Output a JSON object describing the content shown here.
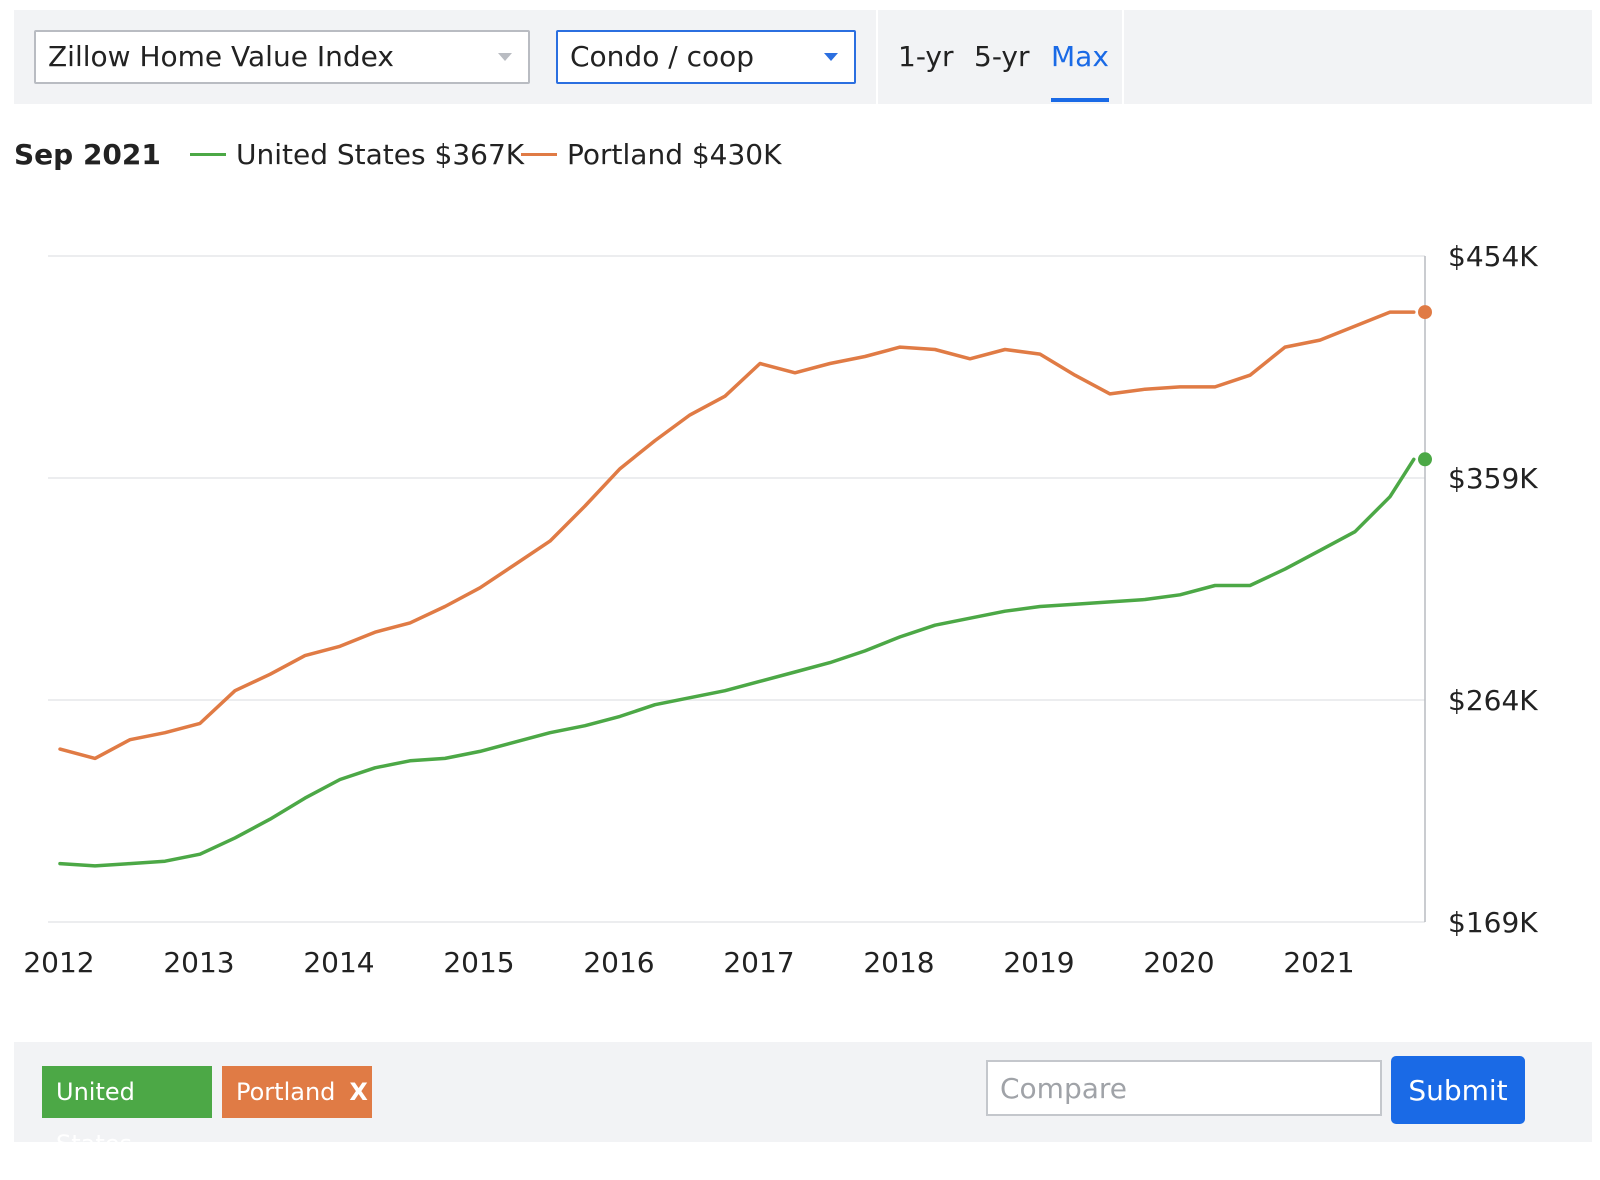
{
  "toolbar": {
    "metric_select": "Zillow Home Value Index",
    "type_select": "Condo / coop",
    "ranges": [
      "1-yr",
      "5-yr",
      "Max"
    ],
    "active_range": "Max"
  },
  "legend": {
    "date": "Sep 2021",
    "items": [
      {
        "label": "United States $367K",
        "color": "#4ca846"
      },
      {
        "label": "Portland $430K",
        "color": "#e07b45"
      }
    ]
  },
  "chips": {
    "us_label": "United States",
    "portland_label": "Portland",
    "remove_label": "X"
  },
  "compare": {
    "placeholder": "Compare",
    "submit_label": "Submit"
  },
  "chart_data": {
    "type": "line",
    "title": "",
    "xlabel": "",
    "ylabel": "",
    "x_ticks": [
      "2012",
      "2013",
      "2014",
      "2015",
      "2016",
      "2017",
      "2018",
      "2019",
      "2020",
      "2021"
    ],
    "y_ticks": [
      "$169K",
      "$264K",
      "$359K",
      "$454K"
    ],
    "y_tick_values": [
      169,
      264,
      359,
      454
    ],
    "ylim": [
      169,
      454
    ],
    "xlim": [
      2012.0,
      2021.67
    ],
    "grid": true,
    "series": [
      {
        "name": "United States",
        "color": "#4ca846",
        "x": [
          2012.0,
          2012.25,
          2012.5,
          2012.75,
          2013.0,
          2013.25,
          2013.5,
          2013.75,
          2014.0,
          2014.25,
          2014.5,
          2014.75,
          2015.0,
          2015.25,
          2015.5,
          2015.75,
          2016.0,
          2016.25,
          2016.5,
          2016.75,
          2017.0,
          2017.25,
          2017.5,
          2017.75,
          2018.0,
          2018.25,
          2018.5,
          2018.75,
          2019.0,
          2019.25,
          2019.5,
          2019.75,
          2020.0,
          2020.25,
          2020.5,
          2020.75,
          2021.0,
          2021.25,
          2021.5,
          2021.67
        ],
        "values": [
          194,
          193,
          194,
          195,
          198,
          205,
          213,
          222,
          230,
          235,
          238,
          239,
          242,
          246,
          250,
          253,
          257,
          262,
          265,
          268,
          272,
          276,
          280,
          285,
          291,
          296,
          299,
          302,
          304,
          305,
          306,
          307,
          309,
          313,
          313,
          320,
          328,
          336,
          351,
          367
        ]
      },
      {
        "name": "Portland",
        "color": "#e07b45",
        "x": [
          2012.0,
          2012.25,
          2012.5,
          2012.75,
          2013.0,
          2013.25,
          2013.5,
          2013.75,
          2014.0,
          2014.25,
          2014.5,
          2014.75,
          2015.0,
          2015.25,
          2015.5,
          2015.75,
          2016.0,
          2016.25,
          2016.5,
          2016.75,
          2017.0,
          2017.25,
          2017.5,
          2017.75,
          2018.0,
          2018.25,
          2018.5,
          2018.75,
          2019.0,
          2019.25,
          2019.5,
          2019.75,
          2020.0,
          2020.25,
          2020.5,
          2020.75,
          2021.0,
          2021.25,
          2021.5,
          2021.67
        ],
        "values": [
          243,
          239,
          247,
          250,
          254,
          268,
          275,
          283,
          287,
          293,
          297,
          304,
          312,
          322,
          332,
          347,
          363,
          375,
          386,
          394,
          408,
          404,
          408,
          411,
          415,
          414,
          410,
          414,
          412,
          403,
          395,
          397,
          398,
          398,
          403,
          415,
          418,
          424,
          430,
          430
        ]
      }
    ]
  }
}
